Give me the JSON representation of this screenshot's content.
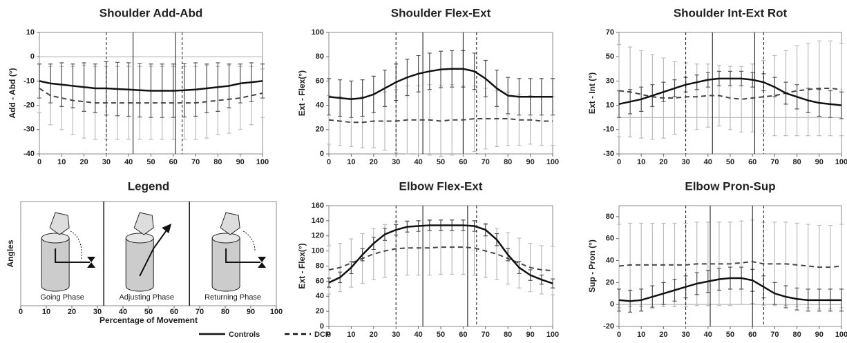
{
  "chart_data": [
    {
      "type": "line",
      "title": "Shoulder Add-Abd",
      "ylabel": "Add    -    Abd (°)",
      "x": [
        0,
        5,
        10,
        15,
        20,
        25,
        30,
        35,
        40,
        45,
        50,
        55,
        60,
        65,
        70,
        75,
        80,
        85,
        90,
        95,
        100
      ],
      "xlim": [
        0,
        100
      ],
      "xticks": [
        0,
        10,
        20,
        30,
        40,
        50,
        60,
        70,
        80,
        90,
        100
      ],
      "ylim": [
        -40,
        10
      ],
      "yticks": [
        -40,
        -30,
        -20,
        -10,
        0,
        10
      ],
      "hline": 0,
      "phase_lines": [
        {
          "x": 30,
          "style": "dashed"
        },
        {
          "x": 42,
          "style": "solid"
        },
        {
          "x": 61,
          "style": "solid"
        },
        {
          "x": 64,
          "style": "dashed"
        }
      ],
      "series": [
        {
          "style": "solid",
          "color": "#111",
          "bar_color": "#555",
          "values": [
            -10,
            -11,
            -11.5,
            -12,
            -12.5,
            -13,
            -13,
            -13.3,
            -13.5,
            -13.8,
            -14,
            -14,
            -14,
            -13.8,
            -13.5,
            -13,
            -12.5,
            -12,
            -11,
            -10.5,
            -10
          ],
          "errors": [
            7,
            8,
            9,
            9,
            10,
            10,
            11,
            11,
            11,
            11,
            11,
            11,
            11,
            11,
            11,
            10,
            10,
            9,
            8,
            8,
            7
          ]
        },
        {
          "style": "dashed",
          "color": "#444",
          "bar_color": "#bbb",
          "values": [
            -13,
            -16,
            -17,
            -18,
            -18.5,
            -19,
            -19,
            -19,
            -19,
            -19,
            -19,
            -19,
            -19,
            -19,
            -19,
            -18.5,
            -18,
            -17.5,
            -17,
            -16,
            -15
          ],
          "errors": [
            10,
            12,
            13,
            14,
            15,
            15,
            15,
            15,
            15,
            15,
            15,
            15,
            15,
            15,
            15,
            15,
            14,
            14,
            13,
            12,
            10
          ]
        }
      ]
    },
    {
      "type": "line",
      "title": "Shoulder Flex-Ext",
      "ylabel": "Ext    -    Flex(°)",
      "x": [
        0,
        5,
        10,
        15,
        20,
        25,
        30,
        35,
        40,
        45,
        50,
        55,
        60,
        65,
        70,
        75,
        80,
        85,
        90,
        95,
        100
      ],
      "xlim": [
        0,
        100
      ],
      "xticks": [
        0,
        10,
        20,
        30,
        40,
        50,
        60,
        70,
        80,
        90,
        100
      ],
      "ylim": [
        0,
        100
      ],
      "yticks": [
        0,
        20,
        40,
        60,
        80,
        100
      ],
      "phase_lines": [
        {
          "x": 30,
          "style": "dashed"
        },
        {
          "x": 42,
          "style": "solid"
        },
        {
          "x": 60,
          "style": "solid"
        },
        {
          "x": 66,
          "style": "dashed"
        }
      ],
      "series": [
        {
          "style": "solid",
          "color": "#111",
          "bar_color": "#555",
          "values": [
            47,
            46,
            45,
            46,
            49,
            54,
            59,
            63,
            66,
            68,
            69.5,
            70,
            70,
            68,
            62,
            54,
            48,
            47,
            47,
            47,
            47
          ],
          "errors": [
            15,
            15,
            15,
            15,
            15,
            15,
            15,
            15,
            15,
            15,
            15,
            15,
            15,
            15,
            15,
            15,
            15,
            15,
            15,
            15,
            15
          ]
        },
        {
          "style": "dashed",
          "color": "#444",
          "bar_color": "#bbb",
          "values": [
            28,
            27,
            26,
            26,
            27,
            27,
            27,
            28,
            28,
            28,
            27,
            28,
            28,
            29,
            29,
            29,
            29,
            28,
            28,
            27,
            27
          ],
          "errors": [
            20,
            20,
            20,
            21,
            22,
            24,
            26,
            28,
            28,
            29,
            29,
            29,
            28,
            27,
            25,
            23,
            22,
            21,
            20,
            20,
            20
          ]
        }
      ]
    },
    {
      "type": "line",
      "title": "Shoulder Int-Ext Rot",
      "ylabel": "Ext    -    Int (°)",
      "x": [
        0,
        5,
        10,
        15,
        20,
        25,
        30,
        35,
        40,
        45,
        50,
        55,
        60,
        65,
        70,
        75,
        80,
        85,
        90,
        95,
        100
      ],
      "xlim": [
        0,
        100
      ],
      "xticks": [
        0,
        10,
        20,
        30,
        40,
        50,
        60,
        70,
        80,
        90,
        100
      ],
      "ylim": [
        -30,
        70
      ],
      "yticks": [
        -30,
        -10,
        10,
        30,
        50,
        70
      ],
      "hline": 0,
      "phase_lines": [
        {
          "x": 30,
          "style": "dashed"
        },
        {
          "x": 42,
          "style": "solid"
        },
        {
          "x": 61,
          "style": "solid"
        },
        {
          "x": 65,
          "style": "dashed"
        }
      ],
      "series": [
        {
          "style": "solid",
          "color": "#111",
          "bar_color": "#555",
          "values": [
            11,
            13,
            15,
            18,
            21,
            24,
            27,
            29,
            31,
            32,
            32,
            32,
            31,
            29,
            25,
            20,
            17,
            14,
            12,
            11,
            10
          ],
          "errors": [
            11,
            10,
            10,
            9,
            8,
            7,
            6,
            6,
            6,
            6,
            6,
            6,
            6,
            7,
            8,
            9,
            10,
            10,
            11,
            11,
            11
          ]
        },
        {
          "style": "dashed",
          "color": "#444",
          "bar_color": "#bbb",
          "values": [
            22,
            21,
            19,
            17,
            16,
            16,
            17,
            17,
            18,
            18,
            16,
            15,
            16,
            17,
            18,
            20,
            22,
            23,
            24,
            24,
            23
          ],
          "errors": [
            38,
            37,
            36,
            35,
            33,
            30,
            28,
            27,
            26,
            25,
            26,
            27,
            28,
            30,
            33,
            35,
            37,
            38,
            39,
            39,
            38
          ]
        }
      ]
    },
    {
      "type": "phase-diagram",
      "title": "Legend",
      "ylabel": "Angles",
      "xlabel": "Percentage of Movement",
      "xlim": [
        0,
        100
      ],
      "xticks": [
        0,
        10,
        20,
        30,
        40,
        50,
        60,
        70,
        80,
        90,
        100
      ],
      "phase_lines": [
        {
          "x": 32.5,
          "style": "solid"
        },
        {
          "x": 66,
          "style": "solid"
        }
      ],
      "phases": [
        "Going Phase",
        "Adjusting Phase",
        "Returning Phase"
      ]
    },
    {
      "type": "line",
      "title": "Elbow Flex-Ext",
      "ylabel": "Ext    -    Flex(°)",
      "x": [
        0,
        5,
        10,
        15,
        20,
        25,
        30,
        35,
        40,
        45,
        50,
        55,
        60,
        65,
        70,
        75,
        80,
        85,
        90,
        95,
        100
      ],
      "xlim": [
        0,
        100
      ],
      "xticks": [
        0,
        10,
        20,
        30,
        40,
        50,
        60,
        70,
        80,
        90,
        100
      ],
      "ylim": [
        0,
        160
      ],
      "yticks": [
        0,
        20,
        40,
        60,
        80,
        100,
        120,
        140,
        160
      ],
      "phase_lines": [
        {
          "x": 30,
          "style": "dashed"
        },
        {
          "x": 42,
          "style": "solid"
        },
        {
          "x": 62,
          "style": "solid"
        },
        {
          "x": 66,
          "style": "dashed"
        }
      ],
      "series": [
        {
          "style": "solid",
          "color": "#111",
          "bar_color": "#555",
          "values": [
            58,
            65,
            78,
            95,
            110,
            122,
            128,
            132,
            133,
            134,
            134,
            134,
            134,
            133,
            128,
            115,
            95,
            78,
            68,
            62,
            57
          ],
          "errors": [
            6,
            7,
            8,
            8,
            8,
            8,
            7,
            7,
            7,
            7,
            7,
            7,
            7,
            7,
            8,
            8,
            8,
            8,
            7,
            6,
            6
          ]
        },
        {
          "style": "dashed",
          "color": "#444",
          "bar_color": "#bbb",
          "values": [
            75,
            78,
            84,
            90,
            96,
            100,
            103,
            104,
            104,
            104,
            105,
            105,
            105,
            104,
            100,
            96,
            90,
            84,
            78,
            75,
            74
          ],
          "errors": [
            32,
            32,
            32,
            33,
            34,
            35,
            36,
            36,
            36,
            36,
            36,
            36,
            36,
            36,
            35,
            34,
            34,
            33,
            32,
            32,
            32
          ]
        }
      ]
    },
    {
      "type": "line",
      "title": "Elbow Pron-Sup",
      "ylabel": "Sup    -    Pron (°)",
      "x": [
        0,
        5,
        10,
        15,
        20,
        25,
        30,
        35,
        40,
        45,
        50,
        55,
        60,
        65,
        70,
        75,
        80,
        85,
        90,
        95,
        100
      ],
      "xlim": [
        0,
        100
      ],
      "xticks": [
        0,
        10,
        20,
        30,
        40,
        50,
        60,
        70,
        80,
        90,
        100
      ],
      "ylim": [
        -20,
        90
      ],
      "yticks": [
        -20,
        0,
        20,
        40,
        60,
        80
      ],
      "hline": 0,
      "phase_lines": [
        {
          "x": 30,
          "style": "dashed"
        },
        {
          "x": 41,
          "style": "solid"
        },
        {
          "x": 60,
          "style": "solid"
        },
        {
          "x": 65,
          "style": "dashed"
        }
      ],
      "series": [
        {
          "style": "solid",
          "color": "#111",
          "bar_color": "#555",
          "values": [
            4,
            3,
            4,
            7,
            10,
            13,
            16,
            19,
            21,
            23,
            24,
            24,
            22,
            16,
            10,
            7,
            5,
            4,
            4,
            4,
            4
          ],
          "errors": [
            10,
            10,
            10,
            10,
            10,
            10,
            10,
            10,
            10,
            10,
            10,
            10,
            10,
            10,
            10,
            10,
            10,
            10,
            10,
            10,
            10
          ]
        },
        {
          "style": "dashed",
          "color": "#444",
          "bar_color": "#bbb",
          "values": [
            35,
            36,
            36,
            36,
            36,
            36,
            36,
            37,
            37,
            37,
            37,
            38,
            39,
            37,
            37,
            37,
            36,
            35,
            34,
            34,
            35
          ],
          "errors": [
            38,
            38,
            38,
            38,
            38,
            38,
            38,
            38,
            38,
            38,
            38,
            38,
            38,
            38,
            38,
            38,
            38,
            38,
            38,
            38,
            38
          ]
        }
      ]
    }
  ],
  "legend": [
    {
      "label": "Controls",
      "style": "solid"
    },
    {
      "label": "DCP",
      "style": "dashed"
    }
  ]
}
